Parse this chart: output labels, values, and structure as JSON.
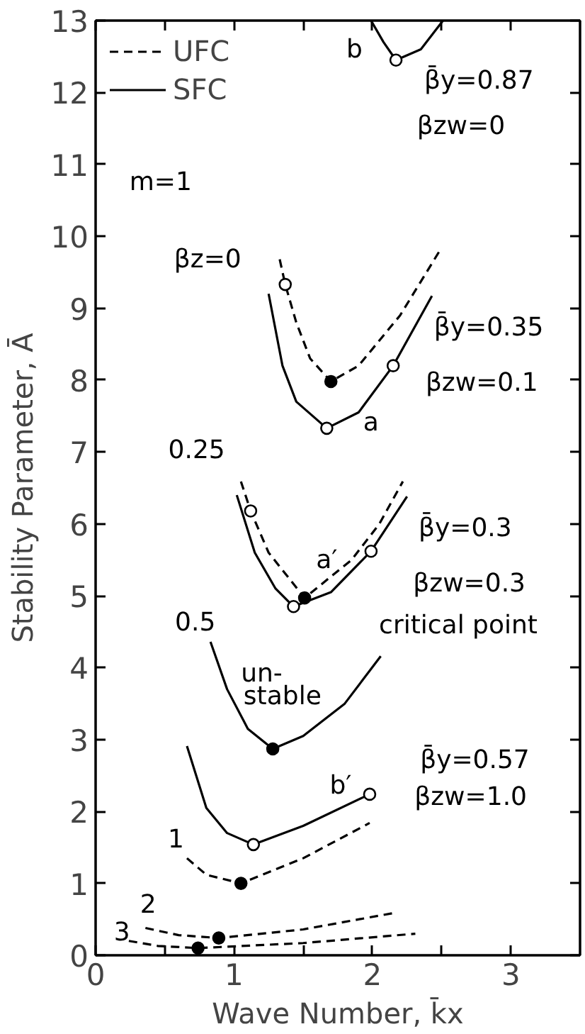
{
  "chart_data": {
    "type": "line",
    "xlabel": "Wave Number, k̄x",
    "ylabel": "Stability Parameter, Ā",
    "xlim": [
      0,
      3.5
    ],
    "ylim": [
      0,
      13
    ],
    "xticks": [
      0,
      {
        "value": 0.5,
        "label": null
      },
      1,
      {
        "value": 1.5,
        "label": null
      },
      2,
      {
        "value": 2.5,
        "label": null
      },
      3
    ],
    "yticks": [
      0,
      1,
      2,
      3,
      4,
      5,
      6,
      7,
      8,
      9,
      10,
      11,
      12,
      13
    ],
    "grid": false,
    "legend": "top left",
    "line_style": "solid",
    "marker": "none",
    "series": [
      {
        "name": "UFC",
        "line_style": "dashed",
        "color": "#000000",
        "x": [
          1.33,
          1.37,
          1.45,
          1.55,
          1.7,
          1.9,
          2.2,
          2.48
        ],
        "values": [
          9.68,
          9.33,
          8.8,
          8.3,
          7.98,
          8.2,
          8.9,
          9.78
        ]
      },
      {
        "name": "SFC",
        "color": "#000000",
        "x": [
          1.99,
          2.08,
          2.17,
          2.35,
          2.51
        ],
        "values": [
          13,
          12.7,
          12.45,
          12.6,
          13
        ]
      },
      {
        "color": "#000000",
        "x": [
          1.25,
          1.35,
          1.45,
          1.67,
          1.9,
          2.15,
          2.43
        ],
        "values": [
          9.2,
          8.2,
          7.7,
          7.33,
          7.55,
          8.2,
          9.17
        ]
      },
      {
        "line_style": "dashed",
        "color": "#000000",
        "x": [
          1.05,
          1.12,
          1.25,
          1.51,
          1.85,
          2.05,
          2.22
        ],
        "values": [
          6.59,
          6.18,
          5.6,
          4.97,
          5.5,
          6.0,
          6.59
        ]
      },
      {
        "color": "#000000",
        "x": [
          1.02,
          1.15,
          1.3,
          1.43,
          1.7,
          1.99,
          2.25
        ],
        "values": [
          6.4,
          5.6,
          5.1,
          4.85,
          5.05,
          5.62,
          6.38
        ]
      },
      {
        "color": "#000000",
        "x": [
          0.83,
          0.95,
          1.1,
          1.28,
          1.5,
          1.8,
          2.06
        ],
        "values": [
          4.36,
          3.7,
          3.15,
          2.87,
          3.05,
          3.5,
          4.16
        ]
      },
      {
        "color": "#000000",
        "x": [
          0.66,
          0.8,
          0.95,
          1.14,
          1.5,
          1.98
        ],
        "values": [
          2.91,
          2.05,
          1.7,
          1.54,
          1.8,
          2.24
        ]
      },
      {
        "line_style": "dashed",
        "color": "#000000",
        "x": [
          0.66,
          0.8,
          1.05,
          1.5,
          1.98
        ],
        "values": [
          1.35,
          1.12,
          1.0,
          1.35,
          1.84
        ]
      },
      {
        "line_style": "dashed",
        "color": "#000000",
        "x": [
          0.36,
          0.6,
          0.89,
          1.5,
          2.16
        ],
        "values": [
          0.38,
          0.28,
          0.24,
          0.36,
          0.59
        ]
      },
      {
        "line_style": "dashed",
        "color": "#000000",
        "x": [
          0.24,
          0.45,
          0.74,
          1.5,
          2.31
        ],
        "values": [
          0.2,
          0.13,
          0.1,
          0.17,
          0.3
        ]
      },
      {
        "type": "scatter",
        "marker": "circle",
        "color": "#000000",
        "x": [
          1.7,
          1.51,
          1.28,
          1.05,
          0.89,
          0.74
        ],
        "values": [
          7.98,
          4.97,
          2.87,
          1.0,
          0.24,
          0.1
        ]
      },
      {
        "type": "scatter",
        "marker": "circle",
        "color": "#ffffff",
        "x": [
          2.17,
          1.37,
          1.67,
          2.15,
          1.12,
          1.43,
          1.99,
          1.14,
          1.98
        ],
        "values": [
          12.45,
          9.33,
          7.33,
          8.2,
          6.18,
          4.85,
          5.62,
          1.54,
          2.24
        ]
      }
    ],
    "annotations": [
      "b",
      "β̄y=0.87",
      "βzw=0",
      "m=1",
      "βz=0",
      "β̄y=0.35",
      "βzw=0.1",
      "a",
      "0.25",
      "a′",
      "β̄y=0.3",
      "βzw=0.3",
      "critical point",
      "0.5",
      "un-",
      "stable",
      "b′",
      "β̄y=0.57",
      "βzw=1.0",
      "1",
      "2",
      "3"
    ]
  }
}
